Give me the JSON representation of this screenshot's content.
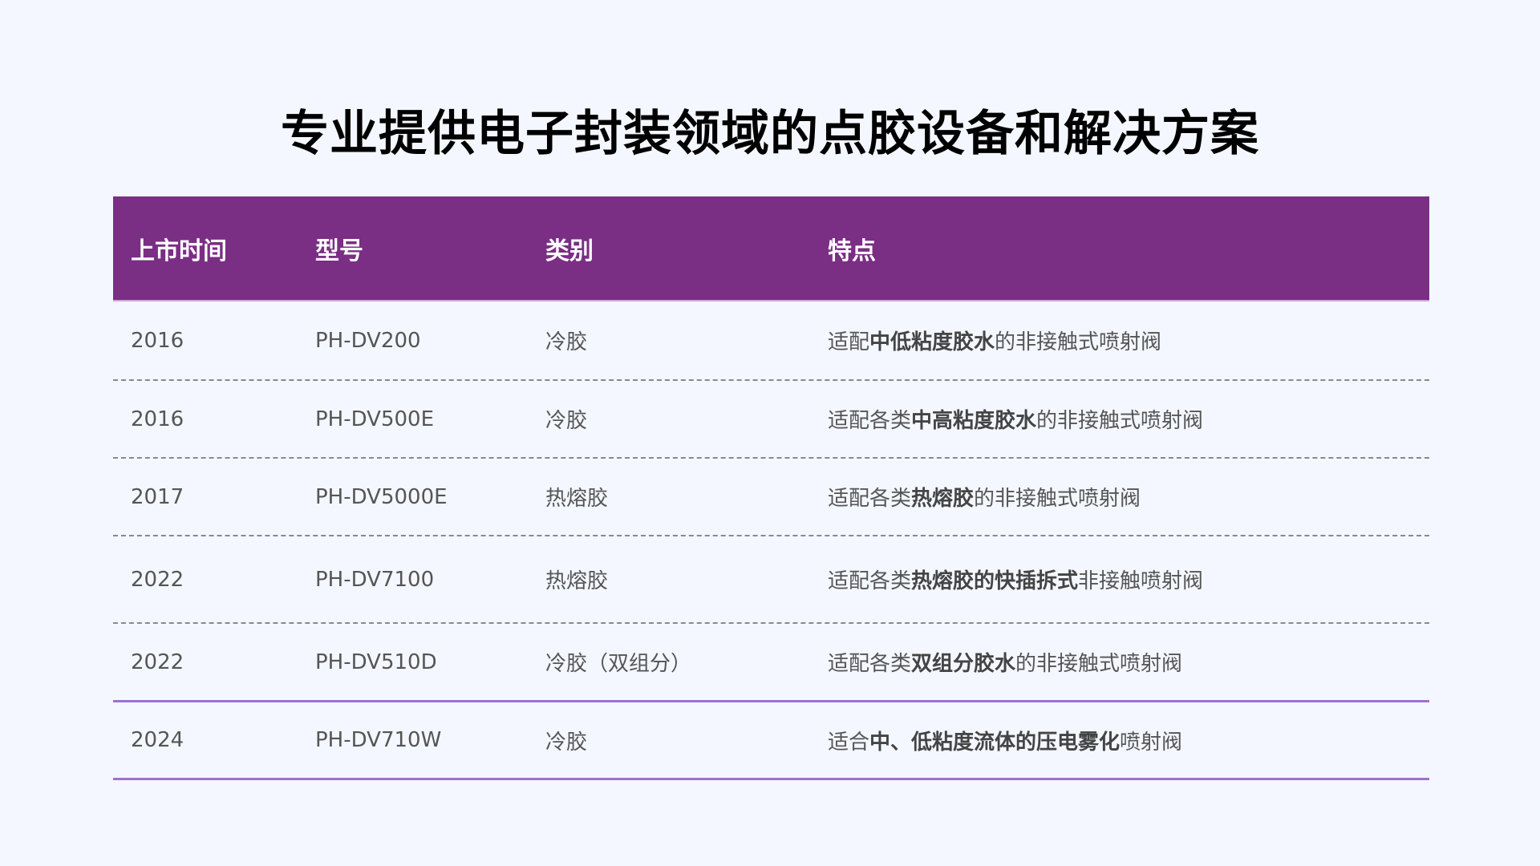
{
  "title": "专业提供电子封装领域的点胶设备和解决方案",
  "colors": {
    "header_bg": "#7a2e84",
    "accent_line": "#a070d0",
    "background": "#f4f7ff"
  },
  "table": {
    "headers": [
      "上市时间",
      "型号",
      "类别",
      "特点"
    ],
    "rows": [
      {
        "year": "2016",
        "model": "PH-DV200",
        "category": "冷胶",
        "feature": [
          {
            "t": "适配",
            "b": false
          },
          {
            "t": "中低粘度胶水",
            "b": true
          },
          {
            "t": "的非接触式喷射阀",
            "b": false
          }
        ]
      },
      {
        "year": "2016",
        "model": "PH-DV500E",
        "category": "冷胶",
        "feature": [
          {
            "t": "适配各类",
            "b": false
          },
          {
            "t": "中高粘度胶水",
            "b": true
          },
          {
            "t": "的非接触式喷射阀",
            "b": false
          }
        ]
      },
      {
        "year": "2017",
        "model": "PH-DV5000E",
        "category": "热熔胶",
        "feature": [
          {
            "t": "适配各类",
            "b": false
          },
          {
            "t": "热熔胶",
            "b": true
          },
          {
            "t": "的非接触式喷射阀",
            "b": false
          }
        ]
      },
      {
        "year": "2022",
        "model": "PH-DV7100",
        "category": "热熔胶",
        "feature": [
          {
            "t": "适配各类",
            "b": false
          },
          {
            "t": "热熔胶的快插拆式",
            "b": true
          },
          {
            "t": "非接触喷射阀",
            "b": false
          }
        ]
      },
      {
        "year": "2022",
        "model": "PH-DV510D",
        "category": "冷胶（双组分）",
        "feature": [
          {
            "t": "适配各类",
            "b": false
          },
          {
            "t": "双组分胶水",
            "b": true
          },
          {
            "t": "的非接触式喷射阀",
            "b": false
          }
        ]
      },
      {
        "year": "2024",
        "model": "PH-DV710W",
        "category": "冷胶",
        "feature": [
          {
            "t": "适合",
            "b": false
          },
          {
            "t": "中、低粘度流体的压电雾化",
            "b": true
          },
          {
            "t": "喷射阀",
            "b": false
          }
        ]
      }
    ]
  }
}
